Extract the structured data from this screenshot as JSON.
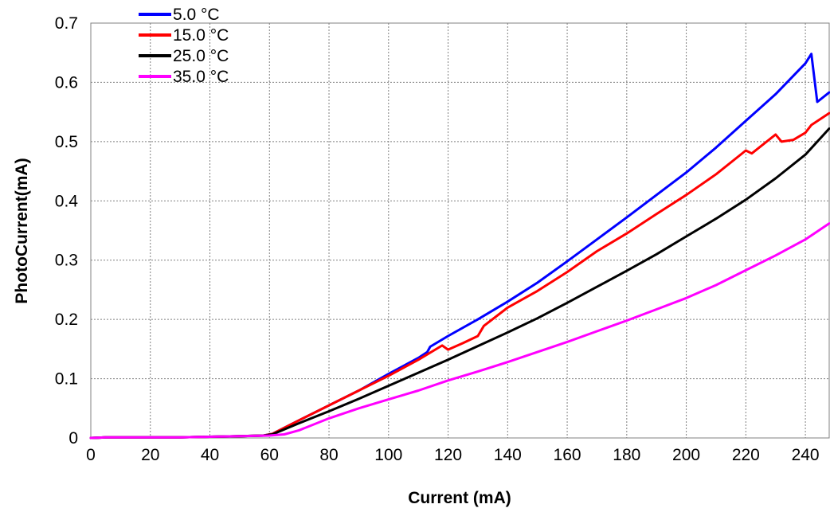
{
  "chart_data": {
    "type": "line",
    "title": "",
    "xlabel": "Current (mA)",
    "ylabel": "PhotoCurrent(mA)",
    "xlim": [
      0,
      248
    ],
    "ylim": [
      0,
      0.7
    ],
    "x_ticks": [
      0,
      20,
      40,
      60,
      80,
      100,
      120,
      140,
      160,
      180,
      200,
      220,
      240
    ],
    "y_ticks": [
      0,
      0.1,
      0.2,
      0.3,
      0.4,
      0.5,
      0.6,
      0.7
    ],
    "x_tick_labels": [
      "0",
      "20",
      "40",
      "60",
      "80",
      "100",
      "120",
      "140",
      "160",
      "180",
      "200",
      "220",
      "240"
    ],
    "y_tick_labels": [
      "0",
      "0.1",
      "0.2",
      "0.3",
      "0.4",
      "0.5",
      "0.6",
      "0.7"
    ],
    "grid": true,
    "legend_position": "top-left",
    "series": [
      {
        "name": "5.0 °C",
        "color": "#0000ff",
        "x": [
          0,
          5,
          10,
          20,
          30,
          40,
          50,
          58,
          61,
          70,
          80,
          90,
          100,
          110,
          113,
          114,
          120,
          130,
          140,
          150,
          160,
          170,
          180,
          190,
          200,
          210,
          220,
          230,
          240,
          242,
          244,
          248
        ],
        "y": [
          0,
          0.001,
          0.001,
          0.001,
          0.001,
          0.002,
          0.003,
          0.004,
          0.007,
          0.03,
          0.055,
          0.08,
          0.108,
          0.135,
          0.145,
          0.154,
          0.172,
          0.2,
          0.23,
          0.262,
          0.298,
          0.335,
          0.372,
          0.41,
          0.448,
          0.49,
          0.535,
          0.58,
          0.632,
          0.648,
          0.567,
          0.583
        ]
      },
      {
        "name": "15.0 °C",
        "color": "#ff0000",
        "x": [
          0,
          5,
          10,
          20,
          30,
          40,
          50,
          58,
          61,
          70,
          80,
          90,
          100,
          110,
          118,
          120,
          125,
          130,
          132,
          140,
          150,
          160,
          170,
          180,
          190,
          200,
          210,
          220,
          222,
          230,
          232,
          236,
          240,
          242,
          248
        ],
        "y": [
          0,
          0.001,
          0.001,
          0.001,
          0.001,
          0.002,
          0.003,
          0.004,
          0.007,
          0.03,
          0.055,
          0.08,
          0.105,
          0.132,
          0.156,
          0.149,
          0.16,
          0.172,
          0.189,
          0.22,
          0.248,
          0.28,
          0.315,
          0.345,
          0.378,
          0.41,
          0.445,
          0.485,
          0.48,
          0.512,
          0.5,
          0.503,
          0.515,
          0.528,
          0.548
        ]
      },
      {
        "name": "25.0 °C",
        "color": "#000000",
        "x": [
          0,
          5,
          10,
          20,
          30,
          40,
          50,
          58,
          61,
          70,
          80,
          90,
          100,
          110,
          120,
          130,
          140,
          150,
          160,
          170,
          180,
          190,
          200,
          210,
          220,
          230,
          240,
          248
        ],
        "y": [
          0,
          0.001,
          0.001,
          0.001,
          0.001,
          0.002,
          0.003,
          0.004,
          0.006,
          0.025,
          0.045,
          0.066,
          0.088,
          0.11,
          0.132,
          0.155,
          0.178,
          0.202,
          0.228,
          0.255,
          0.282,
          0.31,
          0.34,
          0.37,
          0.402,
          0.438,
          0.478,
          0.522
        ]
      },
      {
        "name": "35.0 °C",
        "color": "#ff00ff",
        "x": [
          0,
          5,
          10,
          20,
          30,
          40,
          50,
          60,
          65,
          70,
          80,
          90,
          100,
          110,
          120,
          130,
          140,
          150,
          160,
          170,
          180,
          190,
          200,
          210,
          220,
          230,
          240,
          248
        ],
        "y": [
          0,
          0.001,
          0.001,
          0.001,
          0.001,
          0.002,
          0.003,
          0.004,
          0.006,
          0.013,
          0.033,
          0.05,
          0.065,
          0.08,
          0.097,
          0.112,
          0.128,
          0.145,
          0.162,
          0.18,
          0.198,
          0.217,
          0.236,
          0.258,
          0.283,
          0.308,
          0.335,
          0.362
        ]
      }
    ]
  }
}
